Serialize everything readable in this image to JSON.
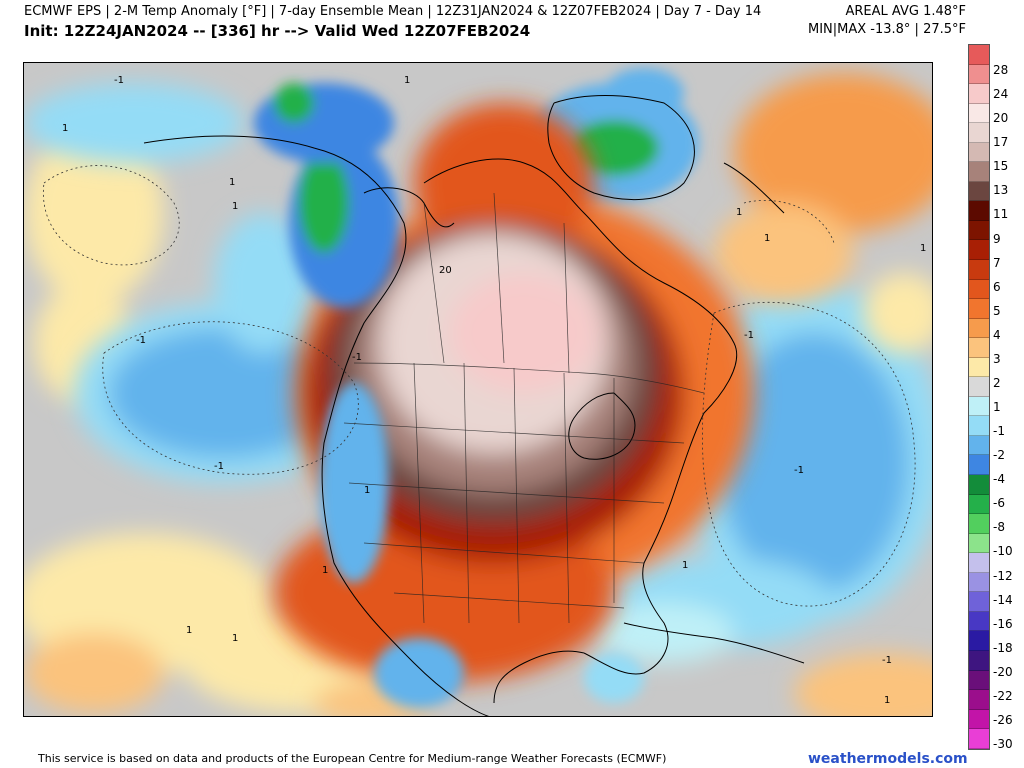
{
  "header": {
    "title_left": "ECMWF EPS | 2-M Temp Anomaly [°F] | 7-day Ensemble Mean | 12Z31JAN2024 & 12Z07FEB2024 | Day 7 - Day 14",
    "init_left": "Init: 12Z24JAN2024 -- [336] hr --> Valid Wed 12Z07FEB2024",
    "title_right": "AREAL AVG 1.48°F",
    "minmax_right": "MIN|MAX -13.8° | 27.5°F"
  },
  "colorbar": {
    "unit": "°F",
    "labels": [
      "28",
      "24",
      "20",
      "17",
      "15",
      "13",
      "11",
      "9",
      "7",
      "6",
      "5",
      "4",
      "3",
      "2",
      "1",
      "-1",
      "-2",
      "-4",
      "-6",
      "-8",
      "-10",
      "-12",
      "-14",
      "-16",
      "-18",
      "-20",
      "-22",
      "-26",
      "-30"
    ],
    "colors": [
      "#e65a5a",
      "#ef8f8f",
      "#f7caca",
      "#f9e8e6",
      "#e9d6d2",
      "#d4b9b3",
      "#a7827a",
      "#6b4640",
      "#5c0a00",
      "#7d1400",
      "#a81f05",
      "#c83a0f",
      "#e2561d",
      "#f1752e",
      "#f69b4c",
      "#fbc37d",
      "#fde9a8",
      "#d9d9d9",
      "#bff0f7",
      "#94dcf6",
      "#62b3ec",
      "#3e86e2",
      "#138c3a",
      "#24b04a",
      "#52cf5e",
      "#8ce38b",
      "#c4c0ec",
      "#9a92e3",
      "#6f62d9",
      "#4838c4",
      "#2a1aa3",
      "#3e1580",
      "#6a0f7a",
      "#9b0e8c",
      "#c214a8",
      "#e93ed6"
    ]
  },
  "map": {
    "contour_labels": [
      "-1",
      "-1",
      "-1",
      "-1",
      "-1",
      "1",
      "1",
      "1",
      "20",
      "-1",
      "-1",
      "1",
      "1",
      "1",
      "1",
      "1",
      "1",
      "1",
      "1",
      "1",
      "1"
    ]
  },
  "footer": {
    "attribution": "This service is based on data and products of the European Centre for Medium-range Weather Forecasts (ECMWF)",
    "brand": "weathermodels.com"
  }
}
